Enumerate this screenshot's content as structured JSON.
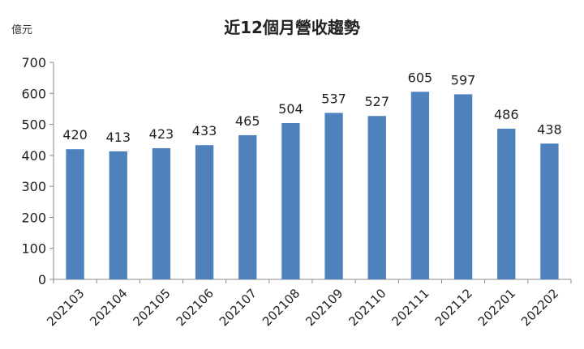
{
  "chart_data": {
    "type": "bar",
    "title": "近12個月營收趨勢",
    "ylabel": "億元",
    "xlabel": "",
    "categories": [
      "202103",
      "202104",
      "202105",
      "202106",
      "202107",
      "202108",
      "202109",
      "202110",
      "202111",
      "202112",
      "202201",
      "202202"
    ],
    "values": [
      420,
      413,
      423,
      433,
      465,
      504,
      537,
      527,
      605,
      597,
      486,
      438
    ],
    "ylim": [
      0,
      700
    ],
    "yticks": [
      0,
      100,
      200,
      300,
      400,
      500,
      600,
      700
    ],
    "grid": false,
    "legend": "none",
    "bar_color": "#4f81bd"
  }
}
